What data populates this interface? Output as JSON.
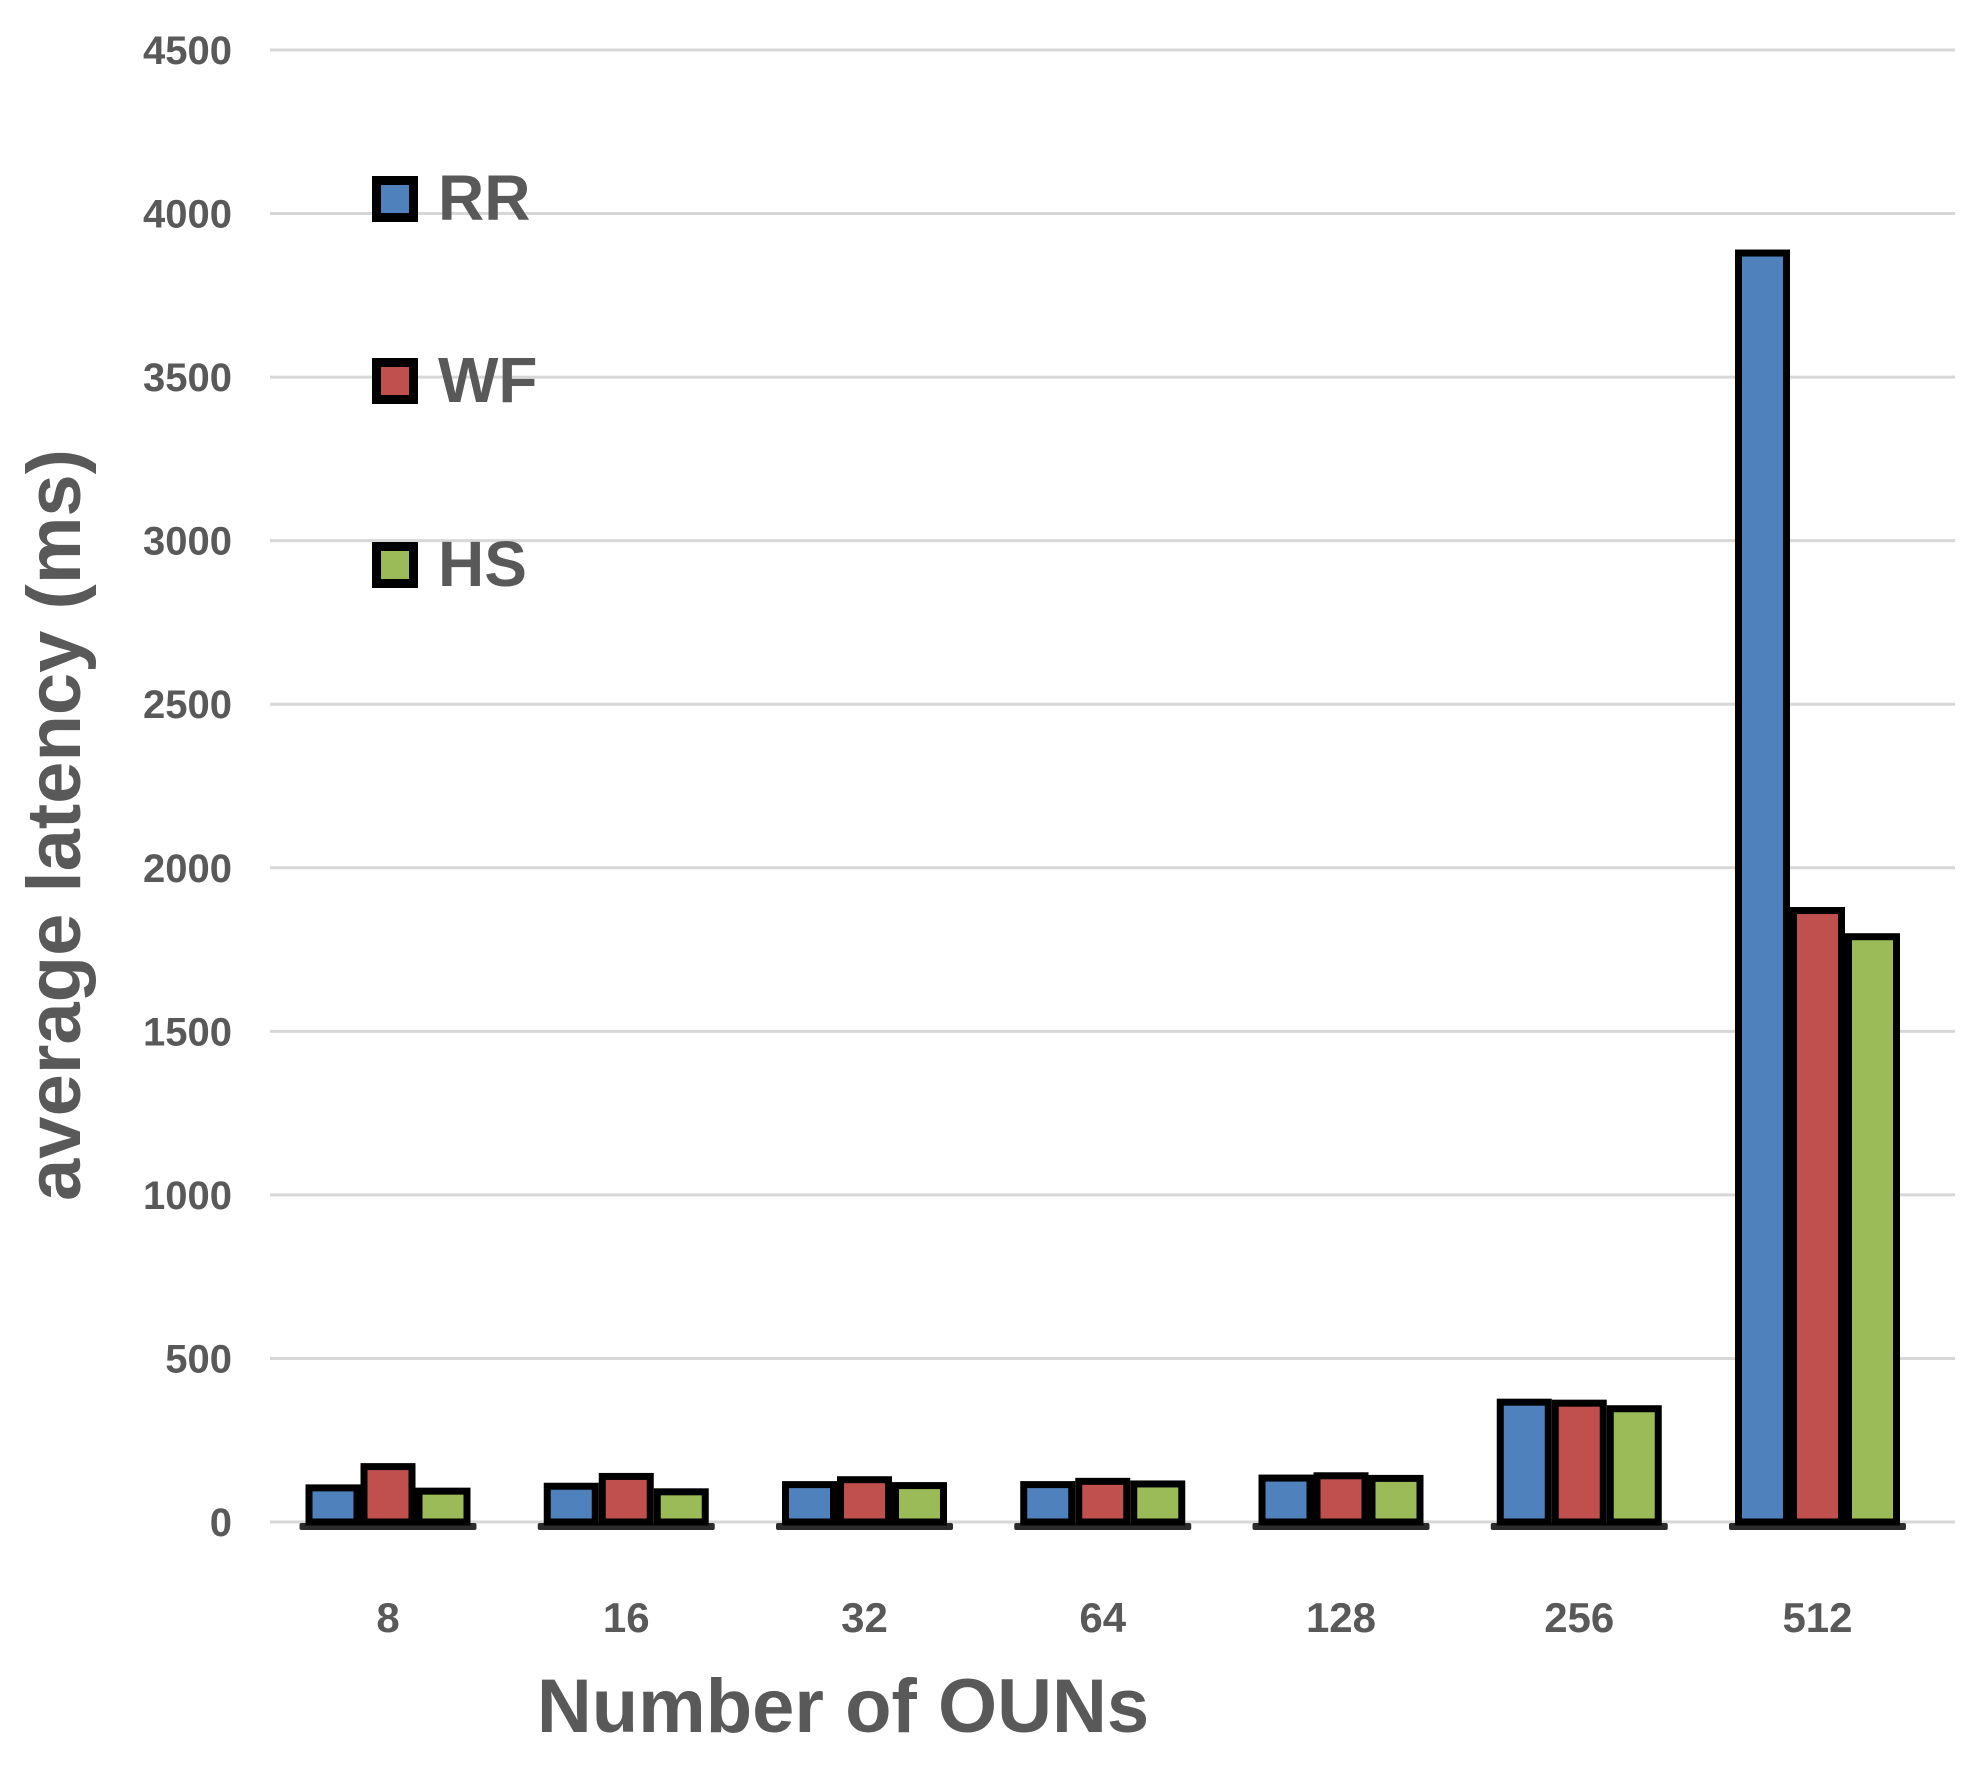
{
  "chart_data": {
    "type": "bar",
    "title": "",
    "xlabel": "Number of OUNs",
    "ylabel": "average latency (ms)",
    "categories": [
      "8",
      "16",
      "32",
      "64",
      "128",
      "256",
      "512"
    ],
    "series": [
      {
        "name": "RR",
        "color": "#4F81BD",
        "values": [
          115,
          120,
          125,
          125,
          145,
          377,
          3890
        ]
      },
      {
        "name": "WF",
        "color": "#C0504D",
        "values": [
          180,
          150,
          140,
          135,
          152,
          374,
          1880
        ]
      },
      {
        "name": "HS",
        "color": "#9BBB59",
        "values": [
          105,
          103,
          122,
          127,
          144,
          357,
          1800
        ]
      }
    ],
    "ylim": [
      0,
      4500
    ],
    "ytick_step": 500,
    "ytick_labels": [
      "0",
      "500",
      "1000",
      "1500",
      "2000",
      "2500",
      "3000",
      "3500",
      "4000",
      "4500"
    ],
    "grid": true,
    "legend_position": "upper-left-inside",
    "bar_border_color": "#000000",
    "gridline_color": "#D7D7D7",
    "text_color": "#595959",
    "background_color": "#FFFFFF"
  }
}
